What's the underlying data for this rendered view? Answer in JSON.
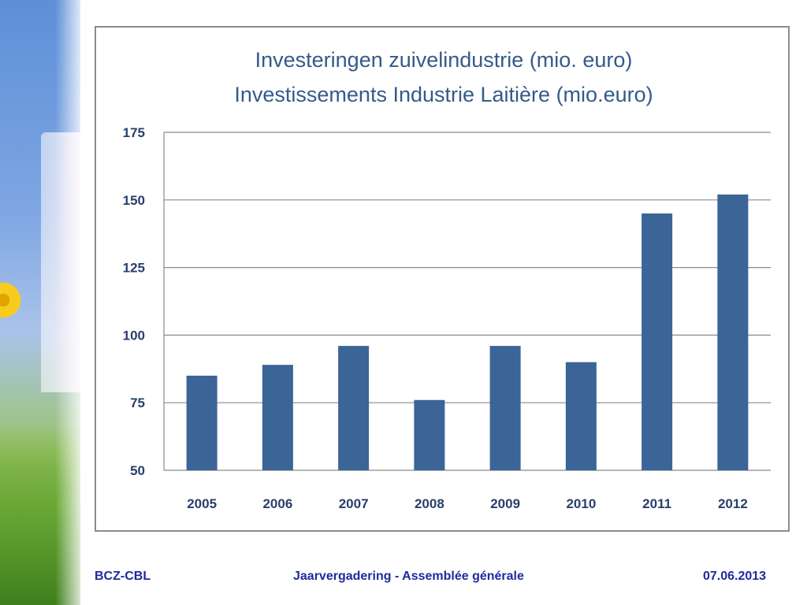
{
  "chart_data": {
    "type": "bar",
    "title": "Investeringen zuivelindustrie  (mio. euro)",
    "subtitle": "Investissements Industrie Laitière (mio.euro)",
    "categories": [
      "2005",
      "2006",
      "2007",
      "2008",
      "2009",
      "2010",
      "2011",
      "2012"
    ],
    "values": [
      85,
      89,
      96,
      76,
      96,
      90,
      145,
      152
    ],
    "ylim": [
      50,
      175
    ],
    "yticks": [
      50,
      75,
      100,
      125,
      150,
      175
    ],
    "ytick_labels": [
      "50",
      "75",
      "100",
      "125",
      "150",
      "175"
    ],
    "grid": true,
    "bar_color": "#3b6497",
    "xlabel": "",
    "ylabel": ""
  },
  "footer": {
    "left": "BCZ-CBL",
    "center": "Jaarvergadering  -  Assemblée générale",
    "right": "07.06.2013"
  }
}
